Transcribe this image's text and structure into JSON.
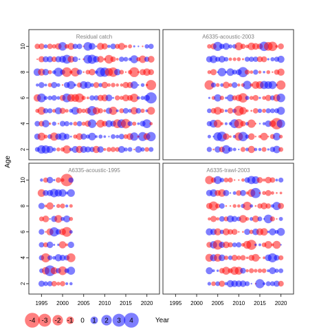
{
  "chart_data": {
    "type": "scatter",
    "subtype": "bubble-residuals",
    "ylabel": "Age",
    "xlabel": "Year",
    "xlim": [
      1992,
      2023
    ],
    "ylim": [
      1.2,
      11.3
    ],
    "x_ticks": [
      1995,
      2000,
      2005,
      2010,
      2015,
      2020
    ],
    "y_ticks": [
      2,
      4,
      6,
      8,
      10
    ],
    "colors": {
      "positive": "#ff0000",
      "negative": "#0000ff",
      "alpha": 0.5
    },
    "panels": [
      {
        "title": "Residual catch",
        "years": [
          1994,
          2021
        ],
        "ages": [
          2,
          10
        ],
        "seed": 11
      },
      {
        "title": "A6335-acoustic-2003",
        "years": [
          2003,
          2020
        ],
        "ages": [
          2,
          10
        ],
        "seed": 23
      },
      {
        "title": "A6335-acoustic-1995",
        "years": [
          1995,
          2002
        ],
        "ages": [
          2,
          10
        ],
        "seed": 37
      },
      {
        "title": "A6335-trawl-2003",
        "years": [
          2003,
          2020
        ],
        "ages": [
          2,
          10
        ],
        "seed": 53
      }
    ],
    "legend": {
      "values": [
        -4,
        -3,
        -2,
        -1,
        0,
        1,
        2,
        3,
        4
      ],
      "labels": [
        "-4",
        "-3",
        "-2",
        "-1",
        "0",
        "1",
        "2",
        "3",
        "4"
      ]
    }
  }
}
